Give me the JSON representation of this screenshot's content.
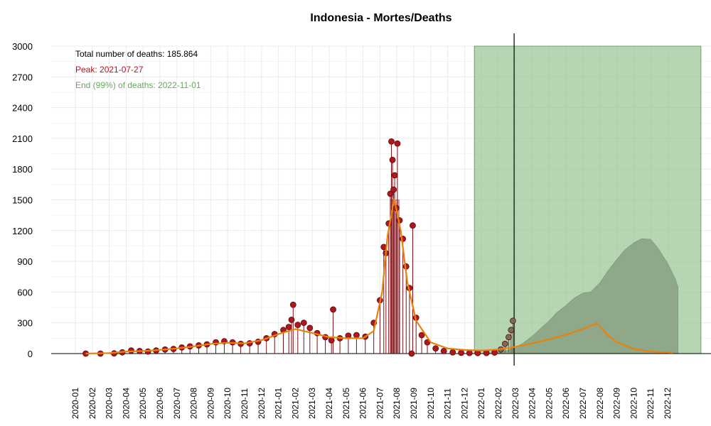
{
  "chart_data": {
    "type": "line",
    "title": "Indonesia - Mortes/Deaths",
    "xlabel": "",
    "ylabel": "",
    "ylim": [
      0,
      3000
    ],
    "yticks": [
      0,
      300,
      600,
      900,
      1200,
      1500,
      1800,
      2100,
      2400,
      2700,
      3000
    ],
    "xticks": [
      "2020-01",
      "2020-02",
      "2020-03",
      "2020-04",
      "2020-05",
      "2020-06",
      "2020-07",
      "2020-08",
      "2020-09",
      "2020-10",
      "2020-11",
      "2020-12",
      "2021-01",
      "2021-02",
      "2021-03",
      "2021-04",
      "2021-05",
      "2021-06",
      "2021-07",
      "2021-08",
      "2021-09",
      "2021-10",
      "2021-11",
      "2021-12",
      "2022-01",
      "2022-02",
      "2022-03",
      "2022-04",
      "2022-05",
      "2022-06",
      "2022-07",
      "2022-08",
      "2022-09",
      "2022-10",
      "2022-11",
      "2022-12"
    ],
    "grid": true,
    "annotations": {
      "total": "Total number of deaths: 185.864",
      "peak": "Peak: 2021-07-27",
      "end": "End (99%) of deaths: 2022-11-01"
    },
    "colors": {
      "points": "#b0161e",
      "point_edge": "#5a0a0a",
      "fit_line": "#e8820c",
      "peak_band": "#d9808a",
      "forecast_band": "#8fbf8a",
      "forecast_area": "#8fa88a",
      "peak_text": "#b0161e",
      "end_text": "#6aa564",
      "recent_points": "#7a6a5a"
    },
    "observed_points": [
      {
        "x": "2020-01-20",
        "y": 0
      },
      {
        "x": "2020-02-15",
        "y": 0
      },
      {
        "x": "2020-03-10",
        "y": 2
      },
      {
        "x": "2020-03-25",
        "y": 12
      },
      {
        "x": "2020-04-10",
        "y": 30
      },
      {
        "x": "2020-04-25",
        "y": 25
      },
      {
        "x": "2020-05-10",
        "y": 20
      },
      {
        "x": "2020-05-25",
        "y": 30
      },
      {
        "x": "2020-06-10",
        "y": 40
      },
      {
        "x": "2020-06-25",
        "y": 45
      },
      {
        "x": "2020-07-10",
        "y": 60
      },
      {
        "x": "2020-07-25",
        "y": 70
      },
      {
        "x": "2020-08-10",
        "y": 80
      },
      {
        "x": "2020-08-25",
        "y": 90
      },
      {
        "x": "2020-09-10",
        "y": 110
      },
      {
        "x": "2020-09-25",
        "y": 120
      },
      {
        "x": "2020-10-10",
        "y": 110
      },
      {
        "x": "2020-10-25",
        "y": 95
      },
      {
        "x": "2020-11-10",
        "y": 100
      },
      {
        "x": "2020-11-25",
        "y": 115
      },
      {
        "x": "2020-12-10",
        "y": 150
      },
      {
        "x": "2020-12-25",
        "y": 190
      },
      {
        "x": "2021-01-10",
        "y": 230
      },
      {
        "x": "2021-01-20",
        "y": 260
      },
      {
        "x": "2021-01-25",
        "y": 330
      },
      {
        "x": "2021-01-28",
        "y": 476
      },
      {
        "x": "2021-02-05",
        "y": 280
      },
      {
        "x": "2021-02-15",
        "y": 300
      },
      {
        "x": "2021-02-25",
        "y": 250
      },
      {
        "x": "2021-03-10",
        "y": 200
      },
      {
        "x": "2021-03-25",
        "y": 160
      },
      {
        "x": "2021-04-05",
        "y": 130
      },
      {
        "x": "2021-04-08",
        "y": 430
      },
      {
        "x": "2021-04-20",
        "y": 150
      },
      {
        "x": "2021-05-05",
        "y": 175
      },
      {
        "x": "2021-05-20",
        "y": 180
      },
      {
        "x": "2021-06-05",
        "y": 165
      },
      {
        "x": "2021-06-20",
        "y": 300
      },
      {
        "x": "2021-07-01",
        "y": 520
      },
      {
        "x": "2021-07-08",
        "y": 1040
      },
      {
        "x": "2021-07-12",
        "y": 980
      },
      {
        "x": "2021-07-17",
        "y": 1270
      },
      {
        "x": "2021-07-20",
        "y": 1560
      },
      {
        "x": "2021-07-22",
        "y": 2070
      },
      {
        "x": "2021-07-24",
        "y": 1890
      },
      {
        "x": "2021-07-26",
        "y": 1600
      },
      {
        "x": "2021-07-28",
        "y": 1740
      },
      {
        "x": "2021-07-31",
        "y": 1420
      },
      {
        "x": "2021-08-02",
        "y": 2050
      },
      {
        "x": "2021-08-06",
        "y": 1300
      },
      {
        "x": "2021-08-12",
        "y": 1120
      },
      {
        "x": "2021-08-18",
        "y": 850
      },
      {
        "x": "2021-08-24",
        "y": 640
      },
      {
        "x": "2021-08-28",
        "y": 0
      },
      {
        "x": "2021-08-30",
        "y": 1250
      },
      {
        "x": "2021-09-05",
        "y": 350
      },
      {
        "x": "2021-09-15",
        "y": 180
      },
      {
        "x": "2021-09-25",
        "y": 110
      },
      {
        "x": "2021-10-10",
        "y": 50
      },
      {
        "x": "2021-10-25",
        "y": 25
      },
      {
        "x": "2021-11-10",
        "y": 12
      },
      {
        "x": "2021-11-25",
        "y": 8
      },
      {
        "x": "2021-12-10",
        "y": 6
      },
      {
        "x": "2021-12-25",
        "y": 5
      },
      {
        "x": "2022-01-10",
        "y": 6
      },
      {
        "x": "2022-01-25",
        "y": 10
      },
      {
        "x": "2022-02-05",
        "y": 40
      },
      {
        "x": "2022-02-12",
        "y": 95
      },
      {
        "x": "2022-02-18",
        "y": 160
      },
      {
        "x": "2022-02-22",
        "y": 230
      },
      {
        "x": "2022-02-25",
        "y": 320
      }
    ],
    "fit_line": [
      {
        "x": "2020-01-20",
        "y": 0
      },
      {
        "x": "2020-03-01",
        "y": 5
      },
      {
        "x": "2020-04-01",
        "y": 20
      },
      {
        "x": "2020-05-01",
        "y": 25
      },
      {
        "x": "2020-06-01",
        "y": 35
      },
      {
        "x": "2020-07-01",
        "y": 50
      },
      {
        "x": "2020-08-01",
        "y": 70
      },
      {
        "x": "2020-09-01",
        "y": 95
      },
      {
        "x": "2020-10-01",
        "y": 105
      },
      {
        "x": "2020-11-01",
        "y": 100
      },
      {
        "x": "2020-12-01",
        "y": 130
      },
      {
        "x": "2021-01-01",
        "y": 190
      },
      {
        "x": "2021-02-01",
        "y": 240
      },
      {
        "x": "2021-03-01",
        "y": 200
      },
      {
        "x": "2021-04-01",
        "y": 160
      },
      {
        "x": "2021-05-01",
        "y": 150
      },
      {
        "x": "2021-06-01",
        "y": 150
      },
      {
        "x": "2021-06-20",
        "y": 220
      },
      {
        "x": "2021-07-05",
        "y": 600
      },
      {
        "x": "2021-07-15",
        "y": 1150
      },
      {
        "x": "2021-07-27",
        "y": 1510
      },
      {
        "x": "2021-08-08",
        "y": 1200
      },
      {
        "x": "2021-08-20",
        "y": 700
      },
      {
        "x": "2021-09-05",
        "y": 320
      },
      {
        "x": "2021-10-01",
        "y": 110
      },
      {
        "x": "2021-11-01",
        "y": 50
      },
      {
        "x": "2021-12-01",
        "y": 35
      },
      {
        "x": "2022-01-01",
        "y": 30
      },
      {
        "x": "2022-02-01",
        "y": 40
      },
      {
        "x": "2022-03-01",
        "y": 65
      },
      {
        "x": "2022-04-01",
        "y": 100
      },
      {
        "x": "2022-05-01",
        "y": 140
      },
      {
        "x": "2022-06-01",
        "y": 185
      },
      {
        "x": "2022-07-01",
        "y": 240
      },
      {
        "x": "2022-07-27",
        "y": 295
      },
      {
        "x": "2022-08-15",
        "y": 180
      },
      {
        "x": "2022-09-01",
        "y": 110
      },
      {
        "x": "2022-10-01",
        "y": 45
      },
      {
        "x": "2022-11-01",
        "y": 20
      },
      {
        "x": "2022-12-10",
        "y": 8
      }
    ],
    "forecast_area": [
      {
        "x": "2022-01-15",
        "y": 0
      },
      {
        "x": "2022-02-01",
        "y": 10
      },
      {
        "x": "2022-02-15",
        "y": 30
      },
      {
        "x": "2022-03-01",
        "y": 60
      },
      {
        "x": "2022-03-15",
        "y": 100
      },
      {
        "x": "2022-04-01",
        "y": 170
      },
      {
        "x": "2022-04-15",
        "y": 240
      },
      {
        "x": "2022-05-01",
        "y": 320
      },
      {
        "x": "2022-05-15",
        "y": 400
      },
      {
        "x": "2022-06-01",
        "y": 470
      },
      {
        "x": "2022-06-15",
        "y": 540
      },
      {
        "x": "2022-07-01",
        "y": 590
      },
      {
        "x": "2022-07-15",
        "y": 600
      },
      {
        "x": "2022-08-01",
        "y": 690
      },
      {
        "x": "2022-08-15",
        "y": 800
      },
      {
        "x": "2022-09-01",
        "y": 920
      },
      {
        "x": "2022-09-15",
        "y": 1010
      },
      {
        "x": "2022-10-01",
        "y": 1080
      },
      {
        "x": "2022-10-15",
        "y": 1120
      },
      {
        "x": "2022-11-01",
        "y": 1115
      },
      {
        "x": "2022-11-15",
        "y": 1020
      },
      {
        "x": "2022-12-01",
        "y": 880
      },
      {
        "x": "2022-12-15",
        "y": 730
      },
      {
        "x": "2022-12-20",
        "y": 650
      }
    ],
    "peak_band": {
      "x_start": "2021-07-20",
      "x_end": "2021-08-05",
      "y": 1500
    },
    "forecast_band": {
      "x_start": "2021-12-19",
      "x_end": "2023-01-31",
      "y": 3000
    },
    "today_line": {
      "x": "2022-02-27"
    }
  }
}
